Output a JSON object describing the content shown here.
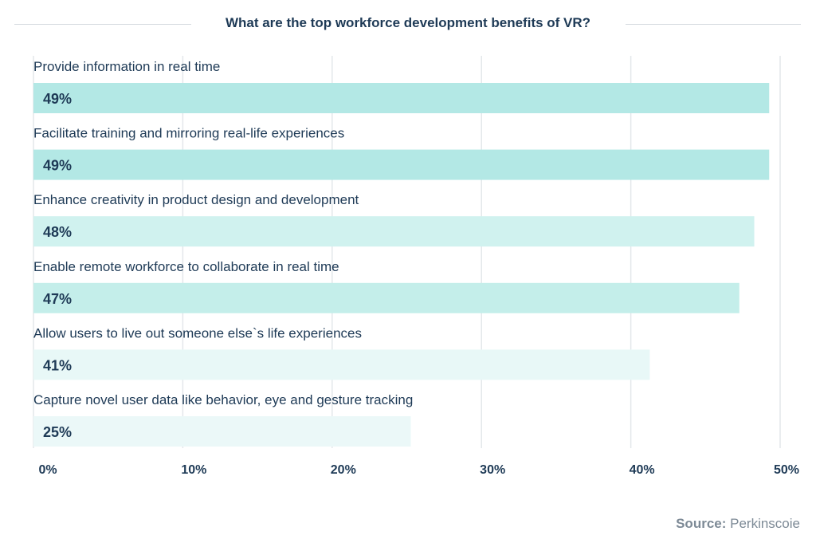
{
  "chart_data": {
    "type": "bar",
    "orientation": "horizontal",
    "title": "What are the top workforce development benefits of VR?",
    "categories": [
      "Provide information in real time",
      "Facilitate training and mirroring real-life experiences",
      "Enhance creativity in product design and development",
      "Enable remote workforce to collaborate in real time",
      "Allow users to live out someone else`s life experiences",
      "Capture novel user data like behavior, eye and gesture tracking"
    ],
    "values": [
      49,
      49,
      48,
      47,
      41,
      25
    ],
    "data_labels": [
      "49%",
      "49%",
      "48%",
      "47%",
      "41%",
      "25%"
    ],
    "bar_colors": [
      "#b3e8e5",
      "#b3e8e5",
      "#d0f2ef",
      "#c4eeea",
      "#e8f8f7",
      "#ebf8f8"
    ],
    "xlim": [
      0,
      50
    ],
    "xticks": [
      0,
      10,
      20,
      30,
      40,
      50
    ],
    "xtick_labels": [
      "0%",
      "10%",
      "20%",
      "30%",
      "40%",
      "50%"
    ],
    "grid": true,
    "xlabel": "",
    "ylabel": ""
  },
  "source": {
    "label": "Source:",
    "value": "Perkinscoie"
  },
  "colors": {
    "text": "#1e3a56",
    "grid": "#e3e7ea"
  }
}
